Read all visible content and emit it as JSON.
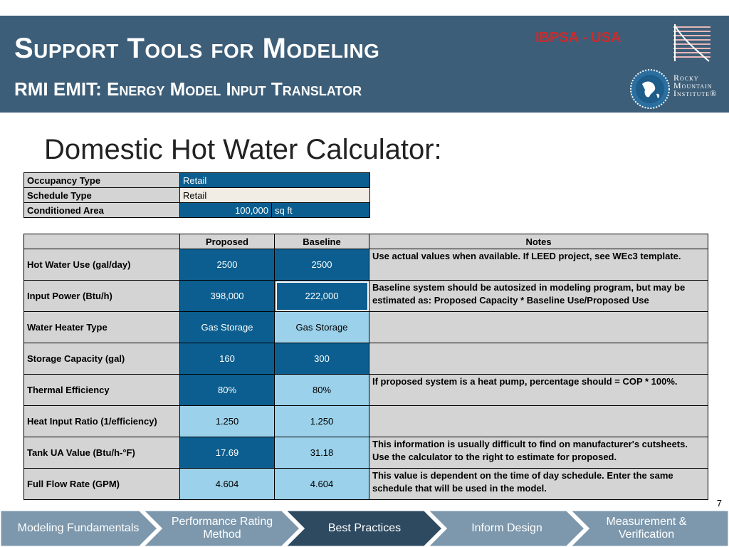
{
  "header": {
    "title": "Support Tools for Modeling",
    "subtitle": "RMI EMIT: Energy Model Input Translator",
    "ibpsa": "IBPSA - USA",
    "rmi_line1": "Rocky",
    "rmi_line2": "Mountain",
    "rmi_line3": "Institute®"
  },
  "heading": "Domestic Hot Water Calculator:",
  "inputs": {
    "occupancy_label": "Occupancy Type",
    "occupancy_value": "Retail",
    "schedule_label": "Schedule Type",
    "schedule_value": "Retail",
    "area_label": "Conditioned Area",
    "area_value": "100,000",
    "area_unit": "sq ft"
  },
  "table": {
    "headers": [
      "",
      "Proposed",
      "Baseline",
      "Notes"
    ],
    "rows": [
      {
        "label": "Hot Water Use (gal/day)",
        "proposed": "2500",
        "baseline": "2500",
        "note": "Use actual values when available.  If LEED project, see WEc3 template."
      },
      {
        "label": "Input Power (Btu/h)",
        "proposed": "398,000",
        "baseline": "222,000",
        "note": "Baseline system should be autosized in modeling program, but may be estimated as: Proposed Capacity * Baseline Use/Proposed Use"
      },
      {
        "label": "Water Heater Type",
        "proposed": "Gas Storage",
        "baseline": "Gas Storage",
        "note": ""
      },
      {
        "label": "Storage Capacity (gal)",
        "proposed": "160",
        "baseline": "300",
        "note": ""
      },
      {
        "label": "Thermal Efficiency",
        "proposed": "80%",
        "baseline": "80%",
        "note": "If proposed system is a heat pump, percentage should = COP * 100%."
      },
      {
        "label": "Heat Input Ratio (1/efficiency)",
        "proposed": "1.250",
        "baseline": "1.250",
        "note": ""
      },
      {
        "label": "Tank UA Value (Btu/h-°F)",
        "proposed": "17.69",
        "baseline": "31.18",
        "note": "This information is usually difficult to find on manufacturer's cutsheets. Use the calculator to the right to estimate for proposed."
      },
      {
        "label": "Full Flow Rate (GPM)",
        "proposed": "4.604",
        "baseline": "4.604",
        "note": "This value is dependent on the time of day schedule.  Enter the same schedule that will be used in the model."
      }
    ]
  },
  "page_number": "7",
  "footer": {
    "items": [
      "Modeling Fundamentals",
      "Performance Rating Method",
      "Best Practices",
      "Inform Design",
      "Measurement & Verification"
    ],
    "active_index": 2,
    "colors": {
      "inactive": "#7d98ad",
      "active": "#2e4a61",
      "accent": "#3d5e78",
      "cell_dark": "#0b5e8f",
      "cell_light": "#9bd1ea"
    }
  }
}
